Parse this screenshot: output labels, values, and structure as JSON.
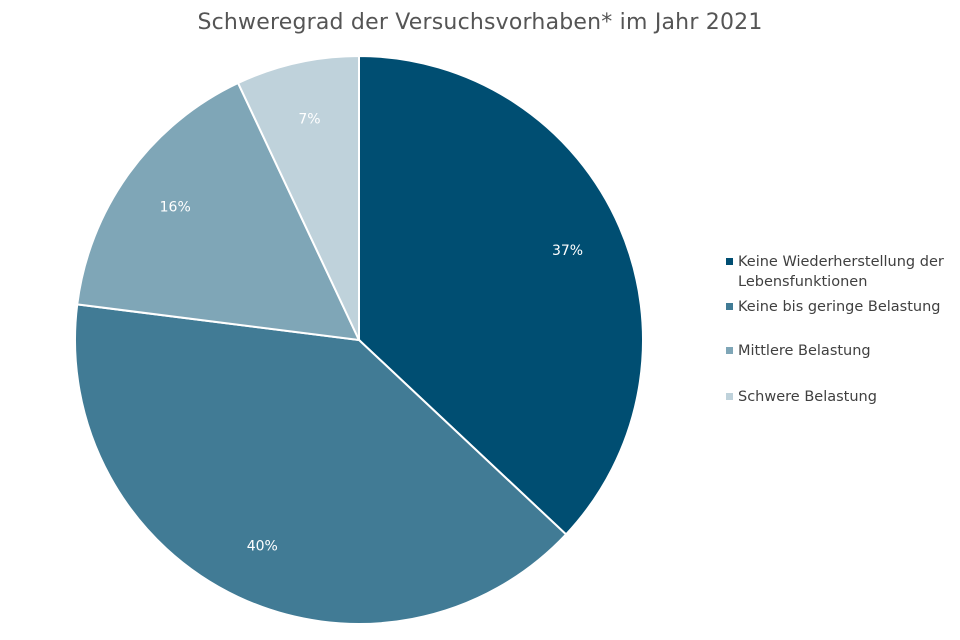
{
  "chart_data": {
    "type": "pie",
    "title": "Schweregrad der Versuchsvorhaben* im Jahr 2021",
    "categories": [
      "Keine Wiederherstellung der Lebensfunktionen",
      "Keine bis geringe Belastung",
      "Mittlere Belastung",
      "Schwere Belastung"
    ],
    "values": [
      37,
      40,
      16,
      7
    ],
    "labels": [
      "37%",
      "40%",
      "16%",
      "7%"
    ],
    "colors": [
      "#004e72",
      "#417b95",
      "#7fa6b7",
      "#bfd2db"
    ],
    "legend_position": "right"
  }
}
